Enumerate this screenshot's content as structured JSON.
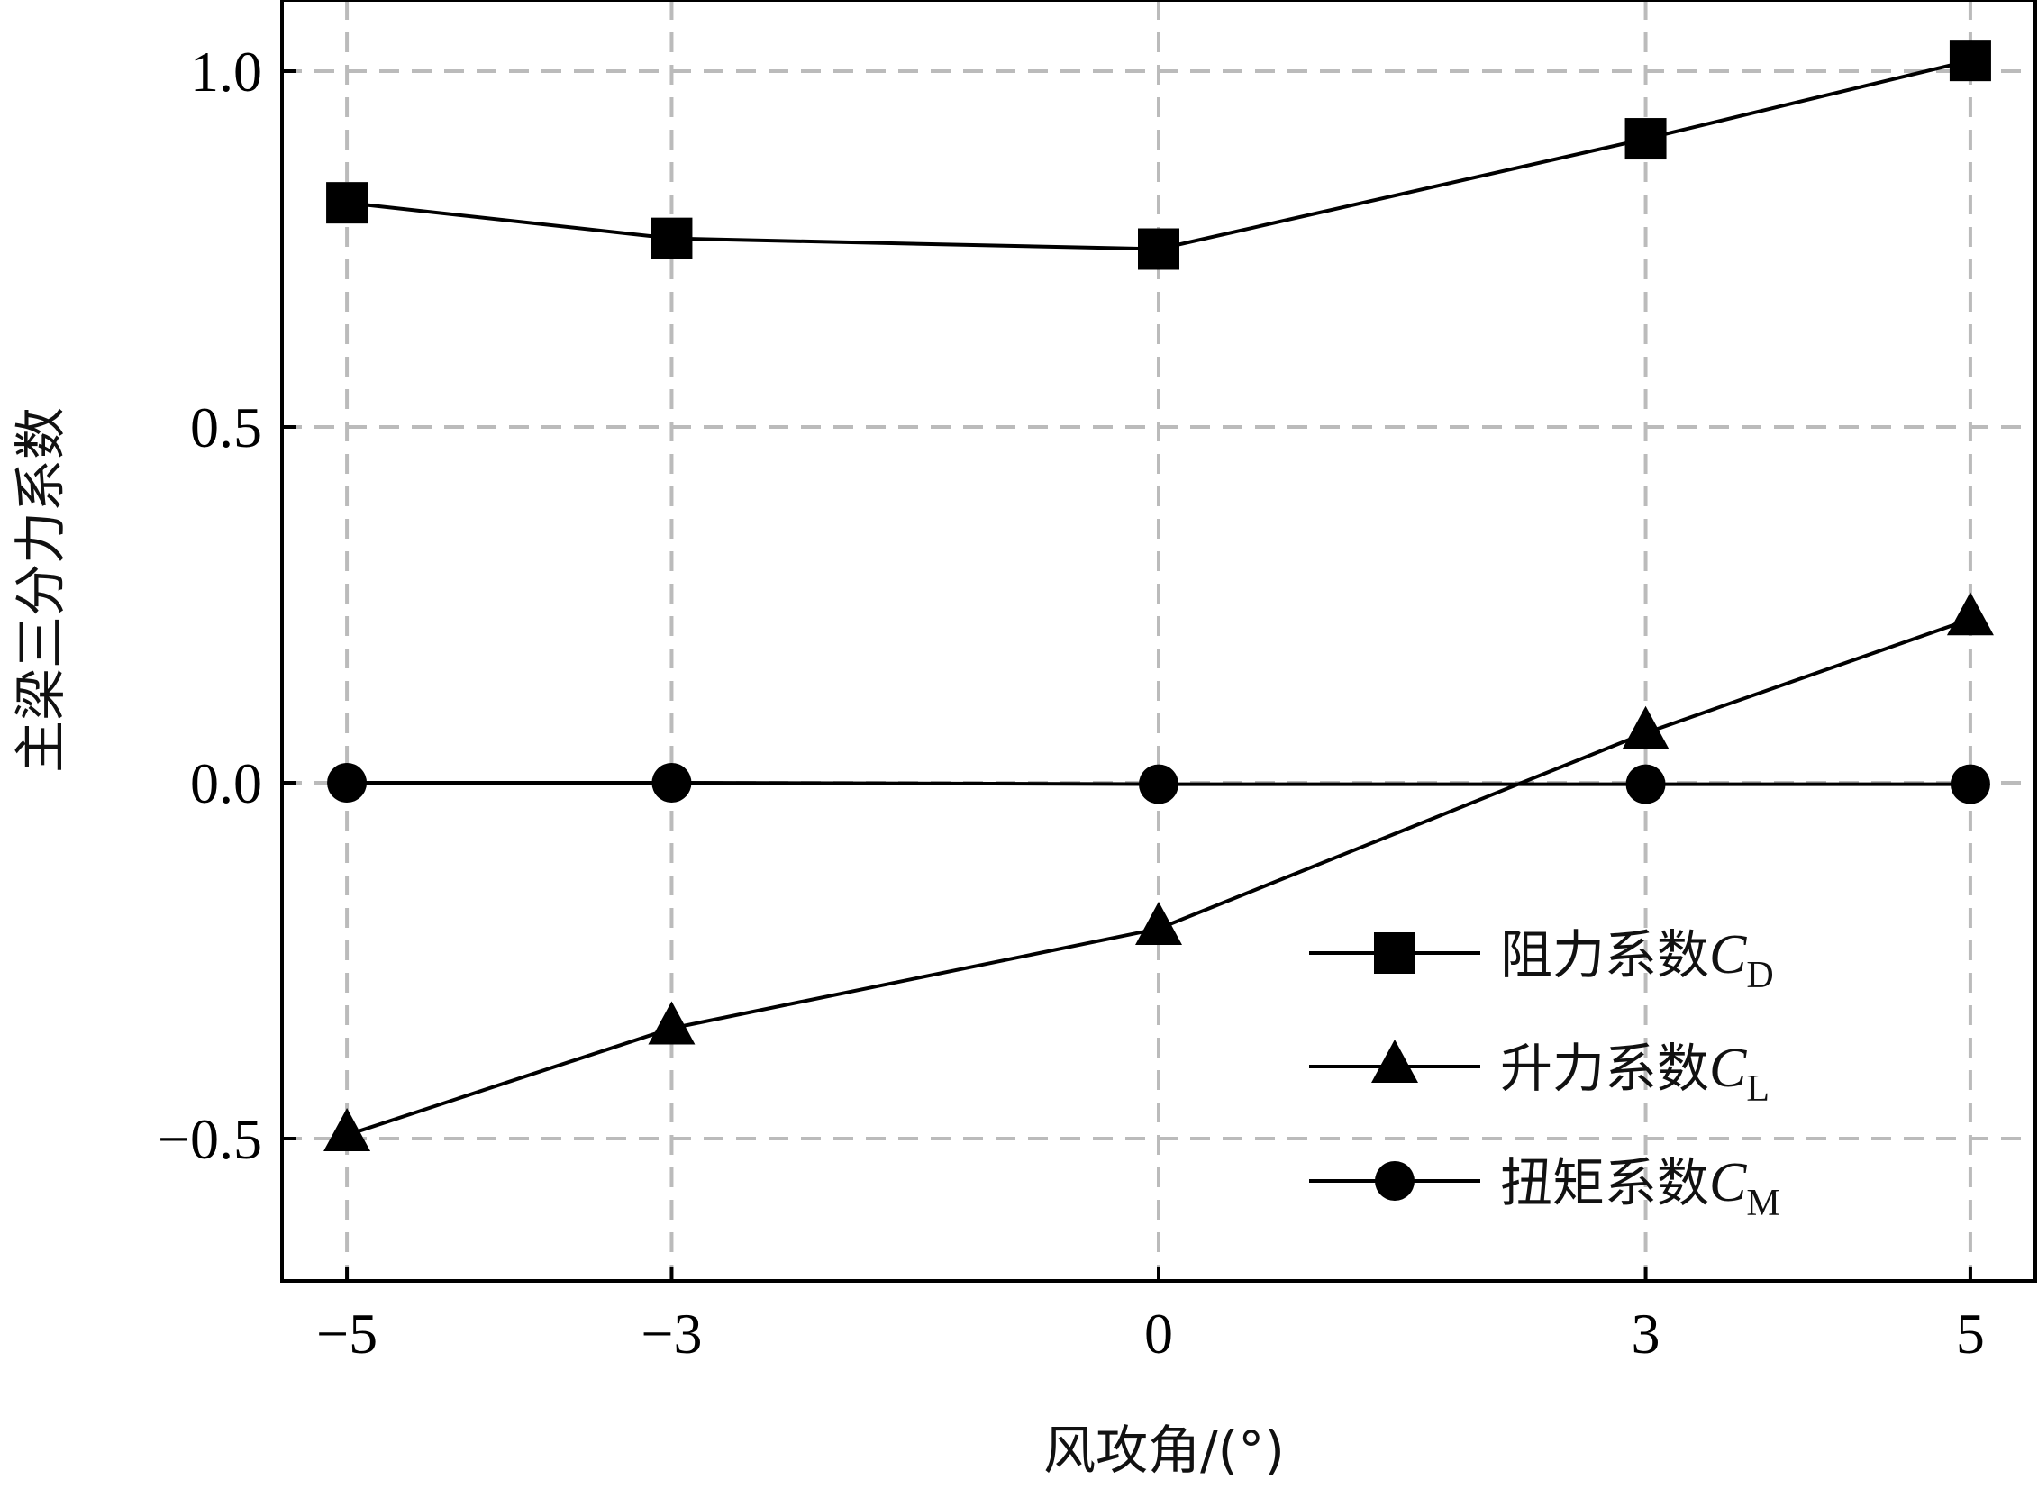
{
  "chart_data": {
    "type": "line",
    "x": [
      -5,
      -3,
      0,
      3,
      5
    ],
    "x_tick_labels": [
      "−5",
      "−3",
      "0",
      "3",
      "5"
    ],
    "y_ticks": [
      1.0,
      0.5,
      0.0,
      -0.5
    ],
    "y_tick_labels": [
      "1.0",
      "0.5",
      "0.0",
      "−0.5"
    ],
    "xlim": [
      -5.4,
      5.4
    ],
    "ylim": [
      -0.7,
      1.1
    ],
    "xlabel": "风攻角/(°)",
    "ylabel": "主梁三分力系数",
    "grid": true,
    "legend_position": "bottom-right",
    "series": [
      {
        "name": "阻力系数",
        "symbol": "C",
        "subscript": "D",
        "marker": "square",
        "values": [
          0.815,
          0.765,
          0.75,
          0.905,
          1.015
        ]
      },
      {
        "name": "升力系数",
        "symbol": "C",
        "subscript": "L",
        "marker": "triangle",
        "values": [
          -0.495,
          -0.345,
          -0.205,
          0.07,
          0.23
        ]
      },
      {
        "name": "扭矩系数",
        "symbol": "C",
        "subscript": "M",
        "marker": "circle",
        "values": [
          0.0,
          0.0,
          -0.002,
          -0.002,
          -0.002
        ]
      }
    ],
    "colors": {
      "line": "#000000",
      "grid": "#bbbbbb",
      "frame": "#000000"
    }
  }
}
